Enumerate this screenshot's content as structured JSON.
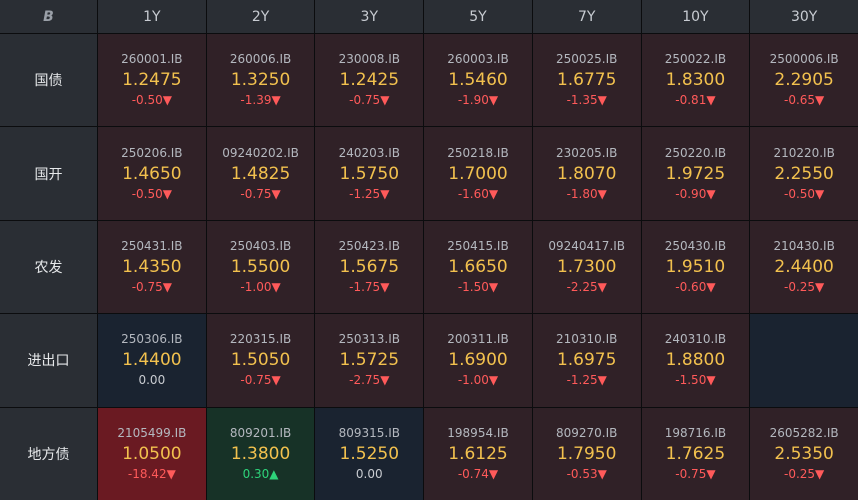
{
  "header": {
    "logo": "B",
    "tenors": [
      "1Y",
      "2Y",
      "3Y",
      "5Y",
      "7Y",
      "10Y",
      "30Y"
    ]
  },
  "rows": [
    {
      "label": "国债",
      "cells": [
        {
          "code": "260001.IB",
          "yield": "1.2475",
          "change": "-0.50▼"
        },
        {
          "code": "260006.IB",
          "yield": "1.3250",
          "change": "-1.39▼"
        },
        {
          "code": "230008.IB",
          "yield": "1.2425",
          "change": "-0.75▼"
        },
        {
          "code": "260003.IB",
          "yield": "1.5460",
          "change": "-1.90▼"
        },
        {
          "code": "250025.IB",
          "yield": "1.6775",
          "change": "-1.35▼"
        },
        {
          "code": "250022.IB",
          "yield": "1.8300",
          "change": "-0.81▼"
        },
        {
          "code": "2500006.IB",
          "yield": "2.2905",
          "change": "-0.65▼"
        }
      ]
    },
    {
      "label": "国开",
      "cells": [
        {
          "code": "250206.IB",
          "yield": "1.4650",
          "change": "-0.50▼"
        },
        {
          "code": "09240202.IB",
          "yield": "1.4825",
          "change": "-0.75▼"
        },
        {
          "code": "240203.IB",
          "yield": "1.5750",
          "change": "-1.25▼"
        },
        {
          "code": "250218.IB",
          "yield": "1.7000",
          "change": "-1.60▼"
        },
        {
          "code": "230205.IB",
          "yield": "1.8070",
          "change": "-1.80▼"
        },
        {
          "code": "250220.IB",
          "yield": "1.9725",
          "change": "-0.90▼"
        },
        {
          "code": "210220.IB",
          "yield": "2.2550",
          "change": "-0.50▼"
        }
      ]
    },
    {
      "label": "农发",
      "cells": [
        {
          "code": "250431.IB",
          "yield": "1.4350",
          "change": "-0.75▼"
        },
        {
          "code": "250403.IB",
          "yield": "1.5500",
          "change": "-1.00▼"
        },
        {
          "code": "250423.IB",
          "yield": "1.5675",
          "change": "-1.75▼"
        },
        {
          "code": "250415.IB",
          "yield": "1.6650",
          "change": "-1.50▼"
        },
        {
          "code": "09240417.IB",
          "yield": "1.7300",
          "change": "-2.25▼"
        },
        {
          "code": "250430.IB",
          "yield": "1.9510",
          "change": "-0.60▼"
        },
        {
          "code": "210430.IB",
          "yield": "2.4400",
          "change": "-0.25▼"
        }
      ]
    },
    {
      "label": "进出口",
      "cells": [
        {
          "code": "250306.IB",
          "yield": "1.4400",
          "change": "0.00"
        },
        {
          "code": "220315.IB",
          "yield": "1.5050",
          "change": "-0.75▼"
        },
        {
          "code": "250313.IB",
          "yield": "1.5725",
          "change": "-2.75▼"
        },
        {
          "code": "200311.IB",
          "yield": "1.6900",
          "change": "-1.00▼"
        },
        {
          "code": "210310.IB",
          "yield": "1.6975",
          "change": "-1.25▼"
        },
        {
          "code": "240310.IB",
          "yield": "1.8800",
          "change": "-1.50▼"
        },
        null
      ]
    },
    {
      "label": "地方债",
      "cells": [
        {
          "code": "2105499.IB",
          "yield": "1.0500",
          "change": "-18.42▼"
        },
        {
          "code": "809201.IB",
          "yield": "1.3800",
          "change": "0.30▲"
        },
        {
          "code": "809315.IB",
          "yield": "1.5250",
          "change": "0.00"
        },
        {
          "code": "198954.IB",
          "yield": "1.6125",
          "change": "-0.74▼"
        },
        {
          "code": "809270.IB",
          "yield": "1.7950",
          "change": "-0.53▼"
        },
        {
          "code": "198716.IB",
          "yield": "1.7625",
          "change": "-0.75▼"
        },
        {
          "code": "2605282.IB",
          "yield": "2.5350",
          "change": "-0.25▼"
        }
      ]
    }
  ],
  "colors": {
    "yield": "#f2c14e",
    "down": "#ff5a5a",
    "up": "#2ed37a",
    "flat": "#c9ccd1",
    "strong_down_bg": "#6a1a22"
  }
}
